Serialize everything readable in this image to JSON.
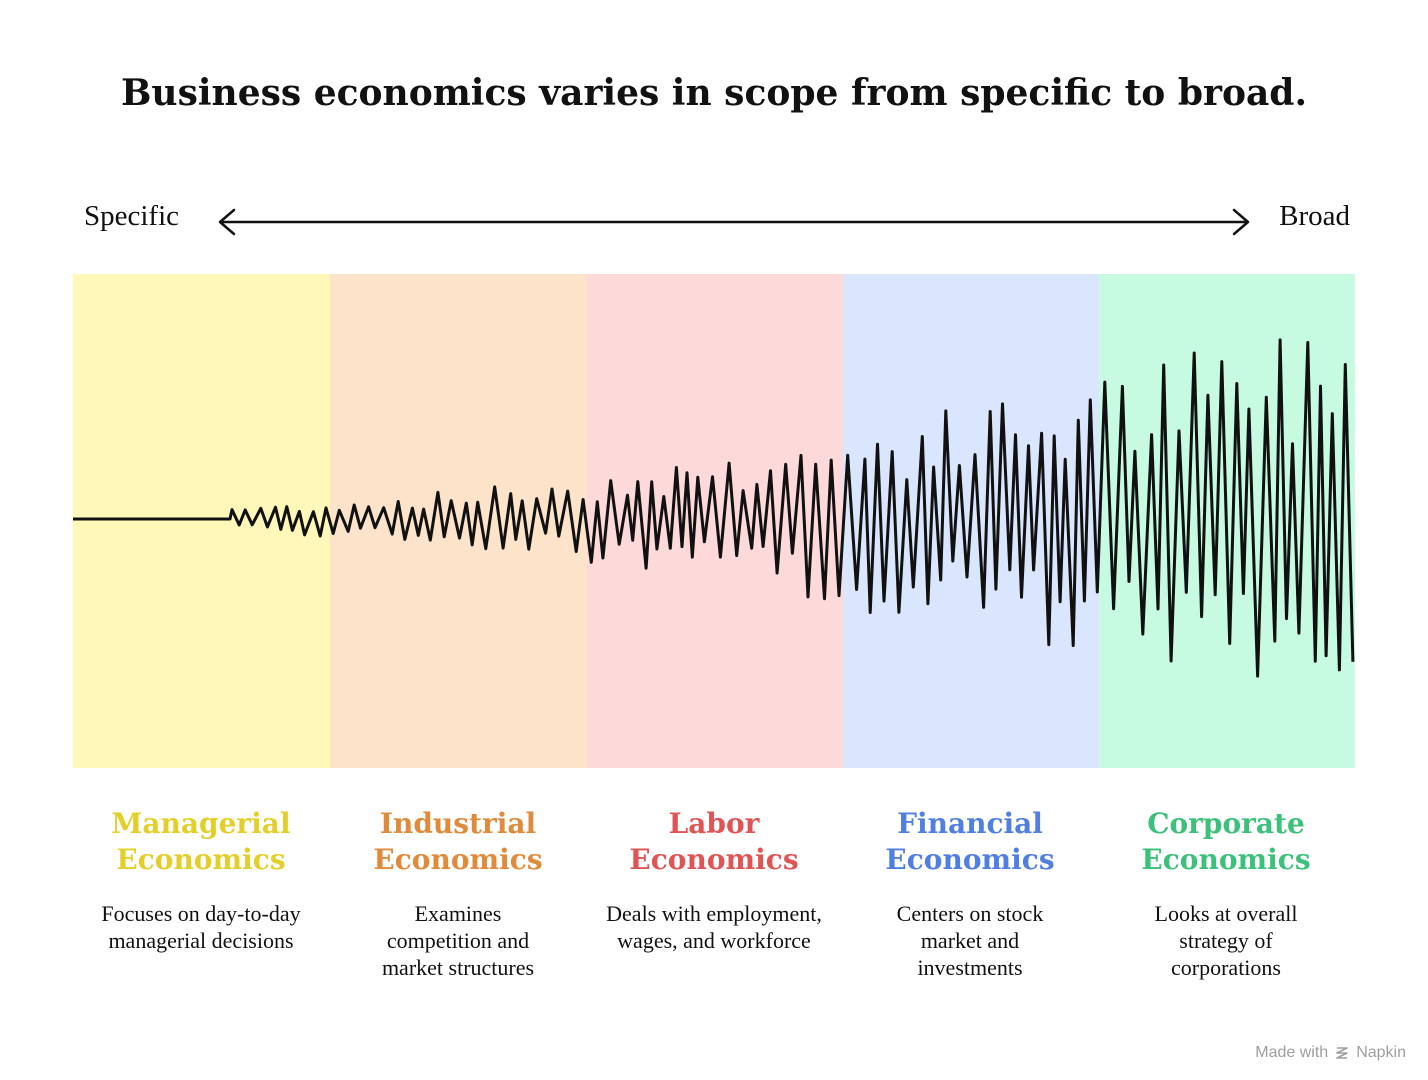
{
  "title": "Business economics varies in scope from specific to broad.",
  "scale": {
    "left_label": "Specific",
    "right_label": "Broad"
  },
  "categories": [
    {
      "title_line1": "Managerial",
      "title_line2": "Economics",
      "description": "Focuses on day-to-day managerial decisions",
      "color": "#e3cf2a",
      "band_color": "#fff8b8"
    },
    {
      "title_line1": "Industrial",
      "title_line2": "Economics",
      "description": "Examines competition and market structures",
      "color": "#e08a3c",
      "band_color": "#fde3c9"
    },
    {
      "title_line1": "Labor",
      "title_line2": "Economics",
      "description": "Deals with employment, wages, and workforce",
      "color": "#e05454",
      "band_color": "#fdd9d9"
    },
    {
      "title_line1": "Financial",
      "title_line2": "Economics",
      "description": "Centers on stock market and investments",
      "color": "#4f7fe0",
      "band_color": "#dae6fd"
    },
    {
      "title_line1": "Corporate",
      "title_line2": "Economics",
      "description": "Looks at overall strategy of corporations",
      "color": "#3cc07a",
      "band_color": "#c6fbe2"
    }
  ],
  "footer": {
    "text": "Made with",
    "brand": "Napkin",
    "logo_icon": "napkin-logo-icon"
  }
}
